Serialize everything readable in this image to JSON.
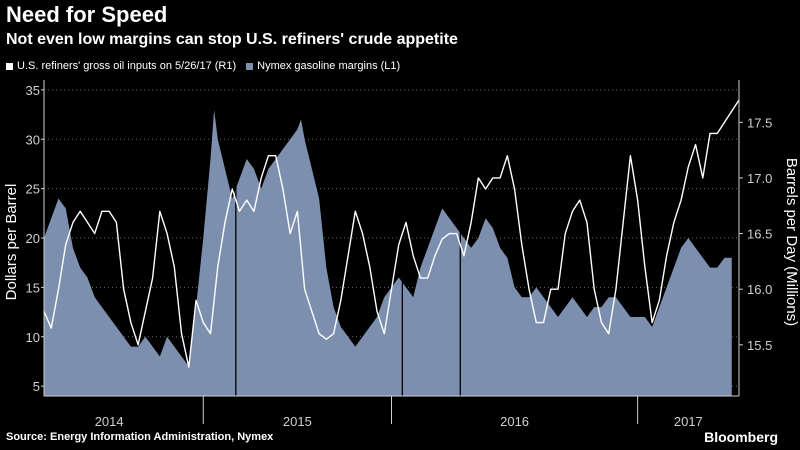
{
  "header": {
    "title": "Need for Speed",
    "subtitle": "Not even low margins can stop U.S. refiners' crude appetite"
  },
  "footer": {
    "source": "Source: Energy Information Administration, Nymex",
    "brand": "Bloomberg"
  },
  "colors": {
    "background": "#000000",
    "area": "#7d8fae",
    "line": "#ffffff",
    "axis": "#cfcfcf",
    "grid": "#666666"
  },
  "chart_data": {
    "type": "area",
    "title": "Need for Speed",
    "subtitle": "Not even low margins can stop U.S. refiners' crude appetite",
    "x_unit": "weeks since 2013-10-01",
    "x_range": [
      0,
      192
    ],
    "legend": [
      {
        "label": "U.S. refiners' gross oil inputs on 5/26/17 (R1)",
        "color": "#ffffff",
        "key": "line"
      },
      {
        "label": "Nymex gasoline margins (L1)",
        "color": "#7d8fae",
        "key": "area"
      }
    ],
    "x_labels": [
      {
        "text": "2014",
        "x": 18
      },
      {
        "text": "2015",
        "x": 70
      },
      {
        "text": "2016",
        "x": 130
      },
      {
        "text": "2017",
        "x": 178
      }
    ],
    "x_dividers": [
      44,
      96,
      164
    ],
    "event_markers": [
      53,
      99,
      115
    ],
    "left_axis": {
      "label": "Dollars per Barrel",
      "ylim": [
        4,
        36
      ],
      "ticks": [
        5,
        10,
        15,
        20,
        25,
        30,
        35
      ]
    },
    "right_axis": {
      "label": "Barrels per Day (Millions)",
      "ylim": [
        15.04,
        17.88
      ],
      "ticks": [
        15.5,
        16.0,
        16.5,
        17.0,
        17.5
      ]
    },
    "series": [
      {
        "name": "Nymex gasoline margins (L1)",
        "axis": "left",
        "x": [
          0,
          2,
          4,
          6,
          8,
          10,
          12,
          14,
          16,
          18,
          20,
          22,
          24,
          26,
          28,
          30,
          32,
          34,
          36,
          38,
          40,
          42,
          44,
          46,
          47,
          48,
          50,
          52,
          54,
          56,
          58,
          60,
          62,
          64,
          66,
          68,
          70,
          71,
          72,
          74,
          76,
          78,
          80,
          82,
          84,
          86,
          88,
          90,
          92,
          94,
          96,
          98,
          100,
          102,
          104,
          106,
          108,
          110,
          112,
          114,
          116,
          118,
          120,
          122,
          124,
          126,
          128,
          130,
          132,
          134,
          136,
          138,
          140,
          142,
          144,
          146,
          148,
          150,
          152,
          154,
          156,
          158,
          160,
          162,
          164,
          166,
          168,
          170,
          172,
          174,
          176,
          178,
          180,
          182,
          184,
          186,
          188,
          190
        ],
        "values": [
          20,
          22,
          24,
          23,
          19,
          17,
          16,
          14,
          13,
          12,
          11,
          10,
          9,
          9,
          10,
          9,
          8,
          10,
          9,
          8,
          7,
          13,
          20,
          28,
          33,
          30,
          27,
          24,
          26,
          28,
          27,
          25,
          27,
          28,
          29,
          30,
          31,
          32,
          30,
          27,
          24,
          17,
          13,
          11,
          10,
          9,
          10,
          11,
          12,
          14,
          15,
          16,
          15,
          14,
          17,
          19,
          21,
          23,
          22,
          21,
          20,
          19,
          20,
          22,
          21,
          19,
          18,
          15,
          14,
          14,
          15,
          14,
          13,
          12,
          13,
          14,
          13,
          12,
          13,
          13,
          14,
          14,
          13,
          12,
          12,
          12,
          11,
          13,
          15,
          17,
          19,
          20,
          19,
          18,
          17,
          17,
          18,
          18
        ]
      },
      {
        "name": "U.S. refiners' gross oil inputs on 5/26/17 (R1)",
        "axis": "right",
        "x": [
          0,
          2,
          4,
          6,
          8,
          10,
          12,
          14,
          16,
          18,
          20,
          22,
          24,
          26,
          28,
          30,
          32,
          34,
          36,
          38,
          40,
          42,
          44,
          46,
          48,
          50,
          52,
          54,
          56,
          58,
          60,
          62,
          64,
          66,
          68,
          70,
          72,
          74,
          76,
          78,
          80,
          82,
          84,
          86,
          88,
          90,
          92,
          94,
          96,
          98,
          100,
          102,
          104,
          106,
          108,
          110,
          112,
          114,
          116,
          118,
          120,
          122,
          124,
          126,
          128,
          130,
          132,
          134,
          136,
          138,
          140,
          142,
          144,
          146,
          148,
          150,
          152,
          154,
          156,
          158,
          160,
          162,
          164,
          166,
          168,
          170,
          172,
          174,
          176,
          178,
          180,
          182,
          184,
          186,
          188,
          190,
          192
        ],
        "values": [
          15.8,
          15.65,
          16.0,
          16.4,
          16.6,
          16.7,
          16.6,
          16.5,
          16.7,
          16.7,
          16.6,
          16.0,
          15.7,
          15.5,
          15.8,
          16.1,
          16.7,
          16.5,
          16.2,
          15.6,
          15.3,
          15.9,
          15.7,
          15.6,
          16.2,
          16.6,
          16.9,
          16.7,
          16.8,
          16.7,
          17.0,
          17.2,
          17.2,
          16.9,
          16.5,
          16.7,
          16.0,
          15.8,
          15.6,
          15.55,
          15.6,
          15.9,
          16.3,
          16.7,
          16.5,
          16.2,
          15.8,
          15.6,
          16.0,
          16.4,
          16.6,
          16.3,
          16.1,
          16.1,
          16.3,
          16.45,
          16.5,
          16.5,
          16.3,
          16.6,
          17.0,
          16.9,
          17.0,
          17.0,
          17.2,
          16.9,
          16.4,
          16.0,
          15.7,
          15.7,
          16.0,
          16.0,
          16.5,
          16.7,
          16.8,
          16.6,
          16.0,
          15.7,
          15.6,
          16.0,
          16.6,
          17.2,
          16.8,
          16.2,
          15.7,
          15.9,
          16.3,
          16.6,
          16.8,
          17.1,
          17.3,
          17.0,
          17.4,
          17.4,
          17.5,
          17.6,
          17.7
        ]
      }
    ]
  }
}
